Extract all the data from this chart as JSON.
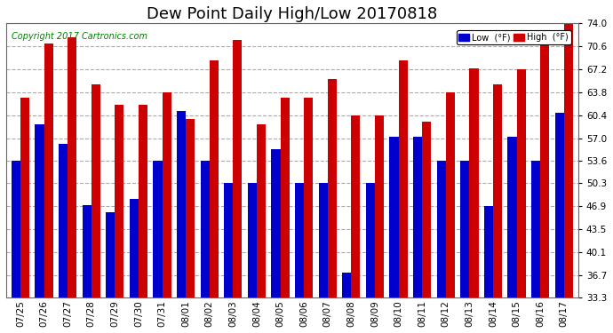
{
  "title": "Dew Point Daily High/Low 20170818",
  "copyright": "Copyright 2017 Cartronics.com",
  "dates": [
    "07/25",
    "07/26",
    "07/27",
    "07/28",
    "07/29",
    "07/30",
    "07/31",
    "08/01",
    "08/02",
    "08/03",
    "08/04",
    "08/05",
    "08/06",
    "08/07",
    "08/08",
    "08/09",
    "08/10",
    "08/11",
    "08/12",
    "08/13",
    "08/14",
    "08/15",
    "08/16",
    "08/17"
  ],
  "low_values": [
    53.6,
    59.0,
    56.1,
    47.0,
    46.0,
    48.0,
    53.6,
    61.0,
    53.6,
    50.3,
    50.3,
    55.4,
    50.3,
    50.3,
    37.0,
    50.3,
    57.2,
    57.2,
    53.6,
    53.6,
    46.9,
    57.2,
    53.6,
    60.8
  ],
  "high_values": [
    63.0,
    71.0,
    72.0,
    65.0,
    62.0,
    62.0,
    63.8,
    59.9,
    68.5,
    71.6,
    59.0,
    63.0,
    63.0,
    65.8,
    60.4,
    60.4,
    68.5,
    59.5,
    63.8,
    67.3,
    65.0,
    67.2,
    71.0,
    74.0
  ],
  "bar_color_low": "#0000cc",
  "bar_color_high": "#cc0000",
  "background_color": "#ffffff",
  "grid_color": "#aaaaaa",
  "ylim_min": 33.3,
  "ylim_max": 74.0,
  "yticks": [
    33.3,
    36.7,
    40.1,
    43.5,
    46.9,
    50.3,
    53.6,
    57.0,
    60.4,
    63.8,
    67.2,
    70.6,
    74.0
  ],
  "title_fontsize": 13,
  "copyright_fontsize": 7,
  "tick_fontsize": 7.5,
  "legend_fontsize": 7
}
